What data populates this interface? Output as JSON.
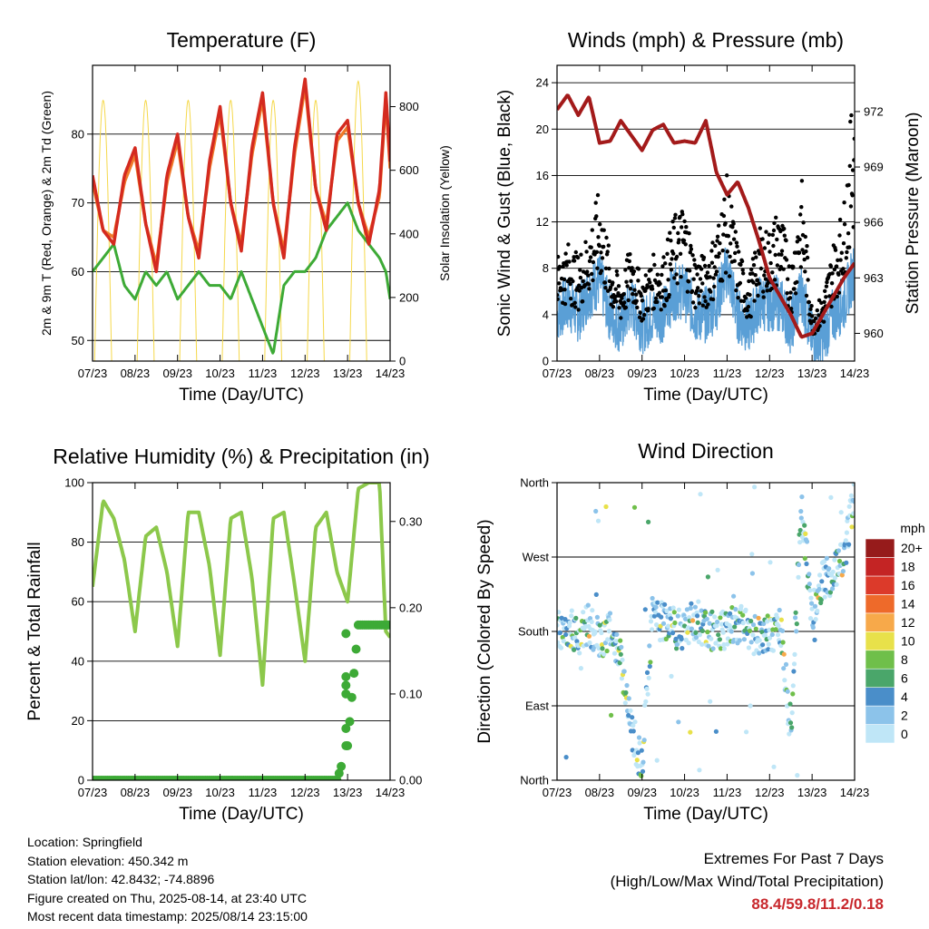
{
  "colors": {
    "t2m": "#d42a1f",
    "t9m": "#f07a2a",
    "td": "#3daa36",
    "solar": "#f5d84a",
    "wind": "#5a9fd6",
    "gust": "#000000",
    "pressure": "#a31a1a",
    "rh": "#8cc84b",
    "precip": "#3daa36",
    "extremes": "#c8282d"
  },
  "x_ticks": [
    "07/23",
    "08/23",
    "09/23",
    "10/23",
    "11/23",
    "12/23",
    "13/23",
    "14/23"
  ],
  "x_label": "Time (Day/UTC)",
  "panels": {
    "temperature": {
      "title": "Temperature (F)",
      "ylabel_left": "2m & 9m T (Red, Orange) & 2m Td (Green)",
      "ylabel_right": "Solar Insolation (Yellow)",
      "left_ticks": [
        "50",
        "60",
        "70",
        "80"
      ],
      "right_ticks": [
        "0",
        "200",
        "400",
        "600",
        "800"
      ]
    },
    "winds": {
      "title": "Winds (mph) & Pressure (mb)",
      "ylabel_left": "Sonic Wind & Gust (Blue, Black)",
      "ylabel_right": "Station Pressure (Maroon)",
      "left_ticks": [
        "0",
        "4",
        "8",
        "12",
        "16",
        "20",
        "24"
      ],
      "right_ticks": [
        "960",
        "963",
        "966",
        "969",
        "972"
      ]
    },
    "humidity": {
      "title": "Relative Humidity (%) & Precipitation (in)",
      "ylabel_left": "Percent & Total Rainfall",
      "left_ticks": [
        "0",
        "20",
        "40",
        "60",
        "80",
        "100"
      ],
      "right_ticks": [
        "0.00",
        "0.10",
        "0.20",
        "0.30"
      ]
    },
    "direction": {
      "title": "Wind Direction",
      "ylabel_left": "Direction (Colored By Speed)",
      "left_ticks": [
        "North",
        "East",
        "South",
        "West",
        "North"
      ],
      "legend_title": "mph",
      "legend_labels": [
        "0",
        "2",
        "4",
        "6",
        "8",
        "10",
        "12",
        "14",
        "16",
        "18",
        "20+"
      ],
      "legend_colors": [
        "#bfe6f7",
        "#8cc3ea",
        "#4a8ec9",
        "#4aa66a",
        "#6fbf4a",
        "#e8e14a",
        "#f7a94a",
        "#ee6a2a",
        "#dc3a2a",
        "#c42424",
        "#961b1b"
      ]
    }
  },
  "chart_data": [
    {
      "type": "line",
      "title": "Temperature (F)",
      "xlabel": "Time (Day/UTC)",
      "ylabel": "2m & 9m T (Red, Orange) & 2m Td (Green)",
      "y2label": "Solar Insolation (Yellow)",
      "xlim": [
        7,
        14
      ],
      "ylim": [
        47,
        90
      ],
      "y2lim": [
        0,
        930
      ],
      "x": [
        7.0,
        7.25,
        7.5,
        7.75,
        8.0,
        8.25,
        8.5,
        8.75,
        9.0,
        9.25,
        9.5,
        9.75,
        10.0,
        10.25,
        10.5,
        10.75,
        11.0,
        11.25,
        11.5,
        11.75,
        12.0,
        12.25,
        12.5,
        12.75,
        13.0,
        13.25,
        13.5,
        13.75,
        13.9,
        14.0
      ],
      "series": [
        {
          "name": "2m T",
          "values": [
            74,
            66,
            64,
            74,
            78,
            67,
            60,
            74,
            80,
            68,
            62,
            76,
            84,
            70,
            63,
            78,
            86,
            70,
            62,
            78,
            88,
            72,
            66,
            80,
            82,
            70,
            64,
            72,
            86,
            76
          ]
        },
        {
          "name": "9m T",
          "values": [
            73,
            66,
            65,
            73,
            77,
            67,
            61,
            73,
            79,
            68,
            63,
            75,
            83,
            70,
            64,
            77,
            85,
            70,
            63,
            77,
            87,
            72,
            67,
            79,
            81,
            70,
            65,
            71,
            85,
            75
          ]
        },
        {
          "name": "2m Td",
          "values": [
            60,
            62,
            64,
            58,
            56,
            60,
            58,
            60,
            56,
            58,
            60,
            58,
            58,
            56,
            60,
            56,
            52,
            48,
            58,
            60,
            60,
            62,
            66,
            68,
            70,
            66,
            64,
            62,
            60,
            56
          ]
        },
        {
          "name": "Solar Insolation",
          "axis": "right",
          "values": [
            0,
            800,
            0,
            0,
            0,
            820,
            0,
            0,
            0,
            840,
            0,
            0,
            0,
            850,
            0,
            0,
            0,
            850,
            0,
            0,
            0,
            850,
            0,
            0,
            0,
            820,
            0,
            0,
            920,
            0
          ]
        }
      ]
    },
    {
      "type": "line",
      "title": "Winds (mph) & Pressure (mb)",
      "xlabel": "Time (Day/UTC)",
      "ylabel": "Sonic Wind & Gust (Blue, Black)",
      "y2label": "Station Pressure (Maroon)",
      "xlim": [
        7,
        14
      ],
      "ylim": [
        0,
        25.5
      ],
      "y2lim": [
        958.5,
        974.5
      ],
      "x": [
        7.0,
        7.25,
        7.5,
        7.75,
        8.0,
        8.25,
        8.5,
        8.75,
        9.0,
        9.25,
        9.5,
        9.75,
        10.0,
        10.25,
        10.5,
        10.75,
        11.0,
        11.25,
        11.5,
        11.75,
        12.0,
        12.25,
        12.5,
        12.75,
        13.0,
        13.25,
        13.5,
        13.75,
        14.0
      ],
      "series": [
        {
          "name": "Sonic Wind",
          "values": [
            4,
            5,
            4,
            6,
            7,
            4,
            3,
            5,
            3,
            4,
            4,
            6,
            6,
            4,
            4,
            5,
            8,
            4,
            3,
            5,
            5,
            5,
            3,
            6,
            2,
            2,
            4,
            5,
            8
          ]
        },
        {
          "name": "Gust",
          "values": [
            8,
            9,
            8,
            10,
            13,
            8,
            6,
            9,
            6,
            8,
            8,
            11,
            12,
            8,
            8,
            10,
            14,
            9,
            6,
            10,
            10,
            12,
            7,
            14,
            4,
            5,
            9,
            12,
            22
          ]
        },
        {
          "name": "Station Pressure",
          "axis": "right",
          "values": [
            972.1,
            972.9,
            971.8,
            972.8,
            970.3,
            970.4,
            971.5,
            970.7,
            969.9,
            971.0,
            971.3,
            970.3,
            970.4,
            970.3,
            971.5,
            968.7,
            967.5,
            968.2,
            966.8,
            965.0,
            963.0,
            962.0,
            961.0,
            959.8,
            960.0,
            961.0,
            962.0,
            963.0,
            963.8
          ]
        }
      ]
    },
    {
      "type": "line",
      "title": "Relative Humidity (%) & Precipitation (in)",
      "xlabel": "Time (Day/UTC)",
      "ylabel": "Percent & Total Rainfall",
      "xlim": [
        7,
        14
      ],
      "ylim": [
        0,
        100
      ],
      "y2lim": [
        0,
        0.345
      ],
      "x": [
        7.0,
        7.25,
        7.5,
        7.75,
        8.0,
        8.25,
        8.5,
        8.75,
        9.0,
        9.25,
        9.5,
        9.75,
        10.0,
        10.25,
        10.5,
        10.75,
        11.0,
        11.25,
        11.5,
        11.75,
        12.0,
        12.25,
        12.5,
        12.75,
        13.0,
        13.25,
        13.5,
        13.75,
        13.9,
        14.0
      ],
      "series": [
        {
          "name": "Relative Humidity",
          "values": [
            65,
            94,
            88,
            74,
            50,
            82,
            85,
            70,
            45,
            90,
            90,
            72,
            42,
            88,
            90,
            68,
            32,
            88,
            90,
            66,
            40,
            85,
            90,
            70,
            60,
            98,
            100,
            100,
            50,
            48
          ]
        },
        {
          "name": "Total Precipitation",
          "axis": "right",
          "values": [
            0,
            0,
            0,
            0,
            0,
            0,
            0,
            0,
            0,
            0,
            0,
            0,
            0,
            0,
            0,
            0,
            0,
            0,
            0,
            0,
            0,
            0,
            0,
            0,
            0.04,
            0.18,
            0.18,
            0.18,
            0.18,
            0.18
          ]
        }
      ]
    },
    {
      "type": "scatter",
      "title": "Wind Direction",
      "xlabel": "Time (Day/UTC)",
      "ylabel": "Direction (Colored By Speed)",
      "xlim": [
        7,
        14
      ],
      "ylim": [
        0,
        360
      ],
      "legend_title": "mph",
      "legend": "right",
      "x": [
        7.0,
        7.25,
        7.5,
        7.75,
        8.0,
        8.25,
        8.5,
        8.75,
        9.0,
        9.25,
        9.5,
        9.75,
        10.0,
        10.25,
        10.5,
        10.75,
        11.0,
        11.25,
        11.5,
        11.75,
        12.0,
        12.25,
        12.5,
        12.75,
        13.0,
        13.25,
        13.5,
        13.75,
        14.0
      ],
      "series": [
        {
          "name": "Wind Direction",
          "values": [
            180,
            185,
            175,
            190,
            170,
            180,
            150,
            60,
            20,
            200,
            190,
            185,
            180,
            195,
            185,
            180,
            185,
            190,
            180,
            175,
            175,
            185,
            60,
            330,
            200,
            240,
            250,
            270,
            350
          ]
        }
      ]
    }
  ],
  "info": {
    "location": "Location: Springfield",
    "elevation": "Station elevation: 450.342 m",
    "latlon": "Station lat/lon: 42.8432; -74.8896",
    "created": "Figure created on Thu, 2025-08-14, at 23:40 UTC",
    "recent": "Most recent data timestamp: 2025/08/14 23:15:00"
  },
  "extremes": {
    "heading": "Extremes For Past 7 Days",
    "subheading": "(High/Low/Max Wind/Total Precipitation)",
    "values": "88.4/59.8/11.2/0.18"
  }
}
